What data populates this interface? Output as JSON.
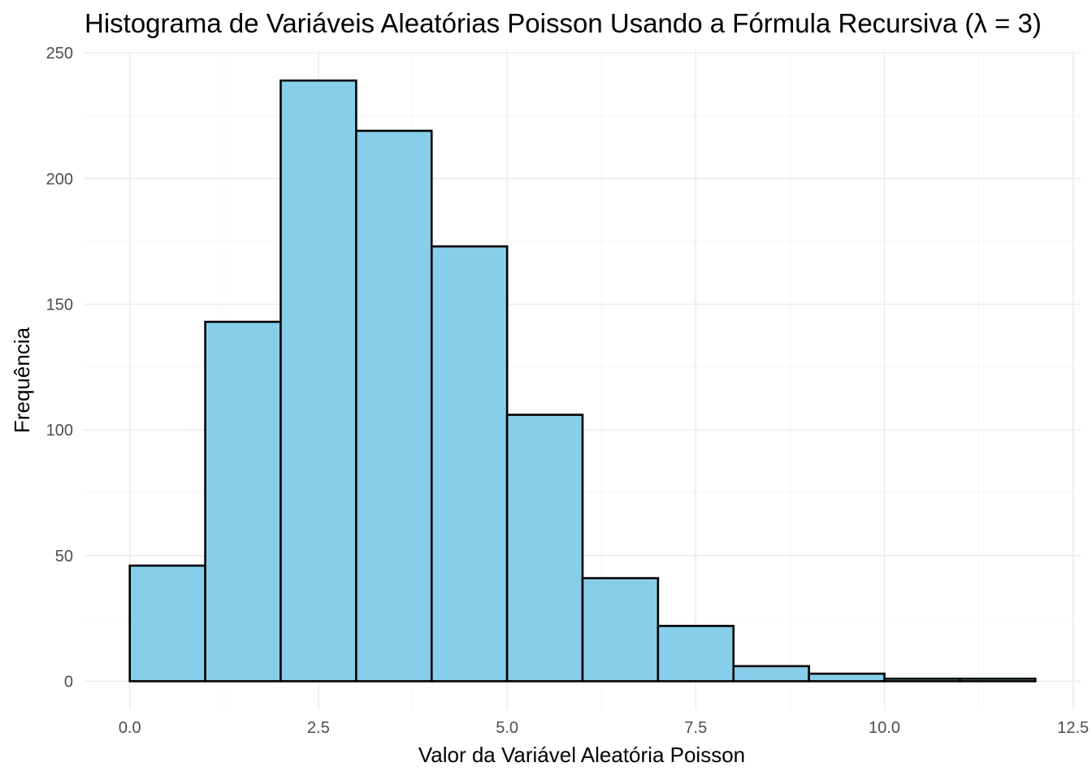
{
  "chart_data": {
    "type": "histogram",
    "title": "Histograma de Variáveis Aleatórias Poisson Usando a Fórmula Recursiva (λ = 3)",
    "xlabel": "Valor da Variável Aleatória Poisson",
    "ylabel": "Frequência",
    "bin_width": 1,
    "bins": [
      {
        "x0": 0,
        "x1": 1,
        "count": 46
      },
      {
        "x0": 1,
        "x1": 2,
        "count": 143
      },
      {
        "x0": 2,
        "x1": 3,
        "count": 239
      },
      {
        "x0": 3,
        "x1": 4,
        "count": 219
      },
      {
        "x0": 4,
        "x1": 5,
        "count": 173
      },
      {
        "x0": 5,
        "x1": 6,
        "count": 106
      },
      {
        "x0": 6,
        "x1": 7,
        "count": 41
      },
      {
        "x0": 7,
        "x1": 8,
        "count": 22
      },
      {
        "x0": 8,
        "x1": 9,
        "count": 6
      },
      {
        "x0": 9,
        "x1": 10,
        "count": 3
      },
      {
        "x0": 10,
        "x1": 11,
        "count": 1
      },
      {
        "x0": 11,
        "x1": 12,
        "count": 1
      }
    ],
    "xlim": [
      -0.6,
      12.6
    ],
    "ylim": [
      -11.5,
      251
    ],
    "x_ticks": [
      0,
      2.5,
      5,
      7.5,
      10,
      12.5
    ],
    "x_tick_labels": [
      "0.0",
      "2.5",
      "5.0",
      "7.5",
      "10.0",
      "12.5"
    ],
    "x_minor_ticks": [
      1.25,
      3.75,
      6.25,
      8.75,
      11.25
    ],
    "y_ticks": [
      0,
      50,
      100,
      150,
      200,
      250
    ],
    "y_tick_labels": [
      "0",
      "50",
      "100",
      "150",
      "200",
      "250"
    ],
    "y_minor_ticks": [
      25,
      75,
      125,
      175,
      225
    ],
    "bar_fill": "#87ceeb",
    "bar_stroke": "#000000",
    "grid": true,
    "legend": "none",
    "theme": "minimal"
  }
}
